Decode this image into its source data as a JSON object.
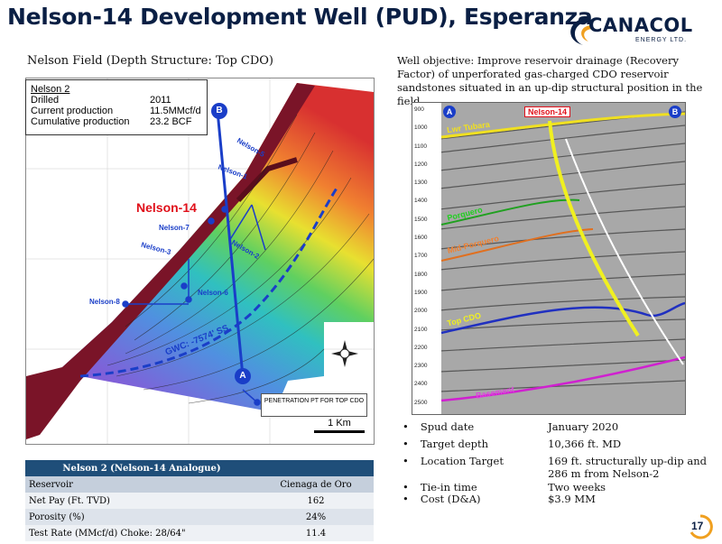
{
  "title": "Nelson-14 Development Well (PUD), Esperanza",
  "logo": {
    "brand": "CANACOL",
    "sub": "ENERGY LTD."
  },
  "map": {
    "subtitle": "Nelson Field (Depth Structure: Top CDO)",
    "infobox": {
      "name": "Nelson 2",
      "rows": [
        {
          "k": "Drilled",
          "v": "2011"
        },
        {
          "k": "Current production",
          "v": "11.5MMcf/d"
        },
        {
          "k": "Cumulative production",
          "v": "23.2 BCF"
        }
      ]
    },
    "well_label": "Nelson-14",
    "wells": {
      "n5": "Nelson-5",
      "n1": "Nelson-1",
      "n7": "Nelson-7",
      "n3": "Nelson-3",
      "n2": "Nelson-2",
      "n6": "Nelson-6",
      "n8": "Nelson-8"
    },
    "gwc": "GWC: -7574' SS",
    "point_a": "A",
    "point_b": "B",
    "penetration": "PENETRATION PT FOR TOP CDO",
    "scale": "1 Km",
    "colors": {
      "well_label": "#e0101a",
      "traverse": "#1a3ec8"
    }
  },
  "objective": "Well objective: Improve reservoir drainage (Recovery Factor) of unperforated gas-charged CDO reservoir sandstones situated in an up-dip structural position in the field",
  "seismic": {
    "point_a": "A",
    "point_b": "B",
    "well": "Nelson-14",
    "depths": [
      "900",
      "1000",
      "1100",
      "1200",
      "1300",
      "1400",
      "1500",
      "1600",
      "1700",
      "1800",
      "1900",
      "2000",
      "2100",
      "2200",
      "2300",
      "2400",
      "2500"
    ],
    "horizons": {
      "lwr_tubara": "Lwr Tubara",
      "porquero": "Porquero",
      "mid_porquero": "Mid-Porquero",
      "top_cdo": "Top CDO",
      "basement": "Basement"
    }
  },
  "analog_table": {
    "header": "Nelson 2 (Nelson-14 Analogue)",
    "sub": {
      "k": "Reservoir",
      "v": "Cienaga de Oro"
    },
    "rows": [
      {
        "k": "Net Pay  (Ft. TVD)",
        "v": "162"
      },
      {
        "k": "Porosity (%)",
        "v": "24%"
      },
      {
        "k": "Test Rate (MMcf/d)  Choke: 28/64\"",
        "v": "11.4"
      }
    ]
  },
  "bullets": [
    {
      "label": "Spud date",
      "value": "January 2020"
    },
    {
      "label": "Target depth",
      "value": "10,366 ft. MD"
    },
    {
      "label": "Location Target",
      "value": "169 ft. structurally up-dip and 286 m from Nelson-2"
    },
    {
      "label": "Tie-in time",
      "value": "Two weeks"
    },
    {
      "label": "Cost (D&A)",
      "value": "$3.9 MM"
    }
  ],
  "page_number": "17"
}
